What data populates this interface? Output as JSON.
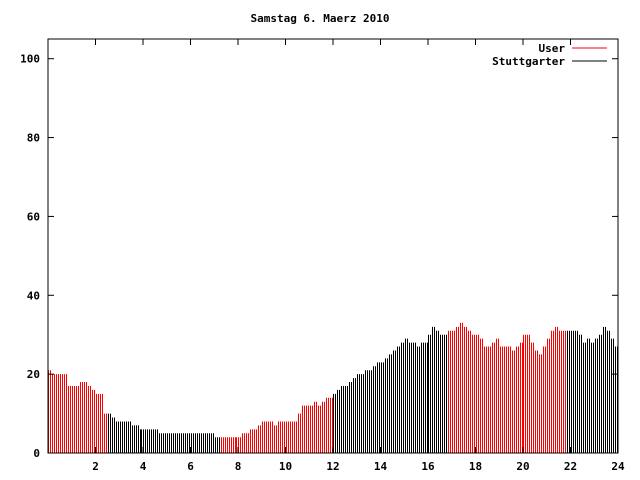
{
  "chart_data": {
    "type": "bar",
    "title": "Samstag 6. Maerz 2010",
    "xlabel": "",
    "ylabel": "",
    "xlim": [
      0,
      24
    ],
    "ylim": [
      0,
      105
    ],
    "x_ticks": [
      "2",
      "4",
      "6",
      "8",
      "10",
      "12",
      "14",
      "16",
      "18",
      "20",
      "22",
      "24"
    ],
    "x_tick_values": [
      2,
      4,
      6,
      8,
      10,
      12,
      14,
      16,
      18,
      20,
      22,
      24
    ],
    "y_ticks": [
      "0",
      "20",
      "40",
      "60",
      "80",
      "100"
    ],
    "y_tick_values": [
      0,
      20,
      40,
      60,
      80,
      100
    ],
    "legend_position": "top-right",
    "series": [
      {
        "name": "User",
        "color": "#ff0000"
      },
      {
        "name": "Stuttgarter",
        "color": "#000000"
      }
    ],
    "interval_hours": 0.16667,
    "values": [
      21,
      20,
      20,
      20,
      20,
      17,
      17,
      17,
      18,
      18,
      17,
      16,
      15,
      15,
      10,
      10,
      9,
      8,
      8,
      8,
      8,
      7,
      7,
      6,
      6,
      6,
      6,
      6,
      5,
      5,
      5,
      5,
      5,
      5,
      5,
      5,
      5,
      5,
      5,
      5,
      5,
      5,
      4,
      4,
      4,
      4,
      4,
      4,
      4,
      5,
      5,
      6,
      6,
      7,
      8,
      8,
      8,
      7,
      8,
      8,
      8,
      8,
      8,
      10,
      12,
      12,
      12,
      13,
      12,
      13,
      14,
      14,
      15,
      16,
      17,
      17,
      18,
      19,
      20,
      20,
      21,
      21,
      22,
      23,
      23,
      24,
      25,
      26,
      27,
      28,
      29,
      28,
      28,
      27,
      28,
      28,
      30,
      32,
      31,
      30,
      30,
      31,
      31,
      32,
      33,
      32,
      31,
      30,
      30,
      29,
      27,
      27,
      28,
      29,
      27,
      27,
      27,
      26,
      27,
      28,
      30,
      30,
      28,
      26,
      25,
      27,
      29,
      31,
      32,
      31,
      31,
      31,
      31,
      31,
      30,
      28,
      29,
      28,
      29,
      30,
      32,
      31,
      29,
      27
    ],
    "segments": [
      {
        "series": "User",
        "from": 0,
        "to": 2.5
      },
      {
        "series": "Stuttgarter",
        "from": 2.5,
        "to": 7.2
      },
      {
        "series": "User",
        "from": 7.2,
        "to": 12
      },
      {
        "series": "Stuttgarter",
        "from": 12,
        "to": 16.8
      },
      {
        "series": "User",
        "from": 16.8,
        "to": 21.8
      },
      {
        "series": "Stuttgarter",
        "from": 21.8,
        "to": 24.01
      }
    ]
  }
}
